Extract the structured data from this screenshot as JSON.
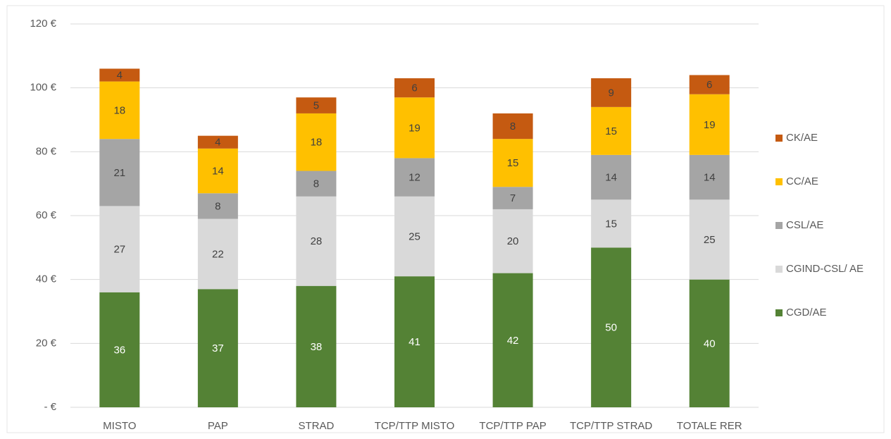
{
  "chart_data": {
    "type": "stacked-bar",
    "categories": [
      "MISTO",
      "PAP",
      "STRAD",
      "TCP/TTP MISTO",
      "TCP/TTP PAP",
      "TCP/TTP STRAD",
      "TOTALE RER"
    ],
    "series": [
      {
        "name": "CGD/AE",
        "color": "#548235",
        "values": [
          36,
          37,
          38,
          41,
          42,
          50,
          40
        ]
      },
      {
        "name": "CGIND-CSL/ AE",
        "color": "#d9d9d9",
        "values": [
          27,
          22,
          28,
          25,
          20,
          15,
          25
        ]
      },
      {
        "name": "CSL/AE",
        "color": "#a5a5a5",
        "values": [
          21,
          8,
          8,
          12,
          7,
          14,
          14
        ]
      },
      {
        "name": "CC/AE",
        "color": "#ffc000",
        "values": [
          18,
          14,
          18,
          19,
          15,
          15,
          19
        ]
      },
      {
        "name": "CK/AE",
        "color": "#c55a11",
        "values": [
          4,
          4,
          5,
          6,
          8,
          9,
          6
        ]
      }
    ],
    "ylim": [
      0,
      120
    ],
    "yticks": [
      {
        "value": 0,
        "label": "-  €"
      },
      {
        "value": 20,
        "label": "20 €"
      },
      {
        "value": 40,
        "label": "40 €"
      },
      {
        "value": 60,
        "label": "60 €"
      },
      {
        "value": 80,
        "label": "80 €"
      },
      {
        "value": 100,
        "label": "100 €"
      },
      {
        "value": 120,
        "label": "120 €"
      }
    ],
    "grid": true,
    "legend": "right"
  }
}
